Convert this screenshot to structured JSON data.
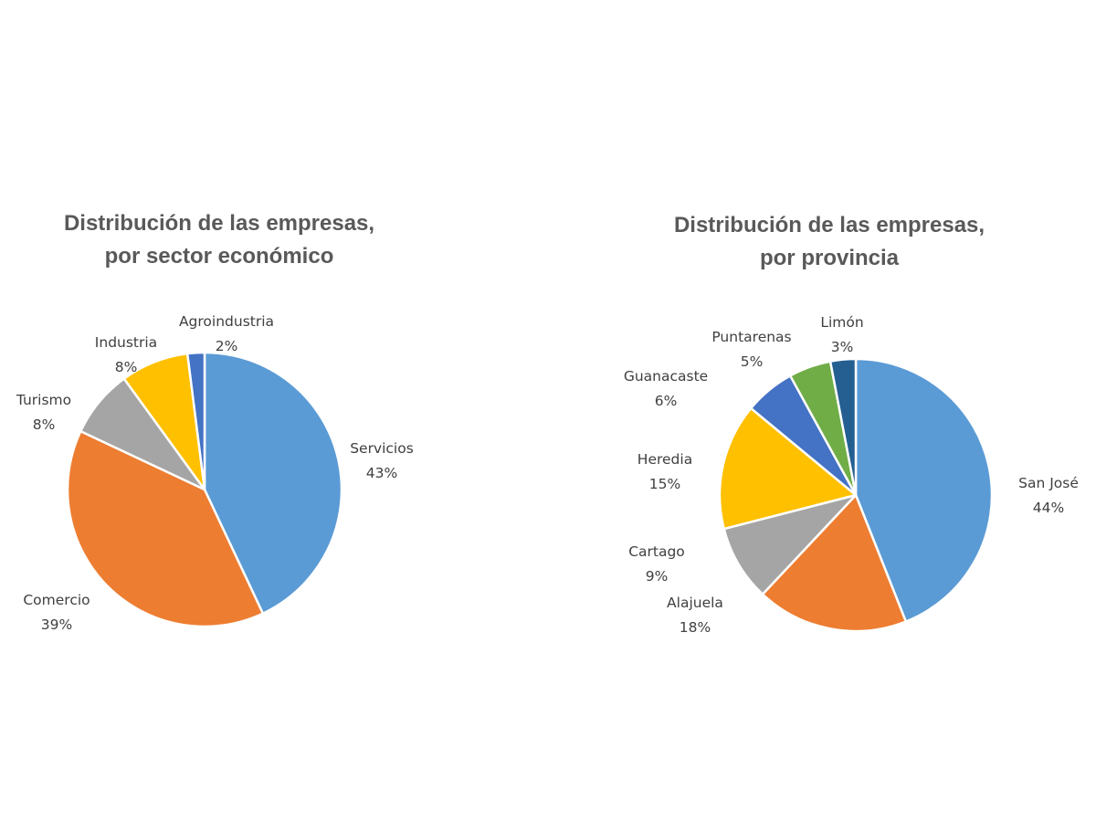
{
  "chart_data": [
    {
      "type": "pie",
      "title": [
        "Distribución de las empresas,",
        "por sector económico"
      ],
      "slices": [
        {
          "name": "Servicios",
          "value": 43,
          "label": "43%",
          "color": "#5B9BD5"
        },
        {
          "name": "Comercio",
          "value": 39,
          "label": "39%",
          "color": "#ED7D31"
        },
        {
          "name": "Turismo",
          "value": 8,
          "label": "8%",
          "color": "#A5A5A5"
        },
        {
          "name": "Industria",
          "value": 8,
          "label": "8%",
          "color": "#FFC000"
        },
        {
          "name": "Agroindustria",
          "value": 2,
          "label": "2%",
          "color": "#4472C4"
        }
      ],
      "start": "12 o'clock",
      "direction": "clockwise",
      "legend": "none",
      "data_labels": "outside, category name and percentage"
    },
    {
      "type": "pie",
      "title": [
        "Distribución de las empresas,",
        "por provincia"
      ],
      "slices": [
        {
          "name": "San José",
          "value": 44,
          "label": "44%",
          "color": "#5B9BD5"
        },
        {
          "name": "Alajuela",
          "value": 18,
          "label": "18%",
          "color": "#ED7D31"
        },
        {
          "name": "Cartago",
          "value": 9,
          "label": "9%",
          "color": "#A5A5A5"
        },
        {
          "name": "Heredia",
          "value": 15,
          "label": "15%",
          "color": "#FFC000"
        },
        {
          "name": "Guanacaste",
          "value": 6,
          "label": "6%",
          "color": "#4472C4"
        },
        {
          "name": "Puntarenas",
          "value": 5,
          "label": "5%",
          "color": "#70AD47"
        },
        {
          "name": "Limón",
          "value": 3,
          "label": "3%",
          "color": "#255E91"
        }
      ],
      "start": "12 o'clock",
      "direction": "clockwise",
      "legend": "none",
      "data_labels": "outside, category name and percentage"
    }
  ]
}
